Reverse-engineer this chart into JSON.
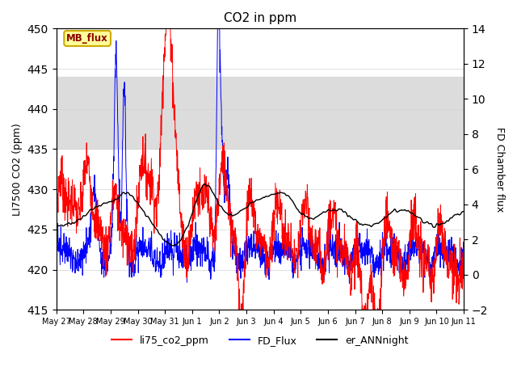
{
  "title": "CO2 in ppm",
  "ylabel_left": "LI7500 CO2 (ppm)",
  "ylabel_right": "FD Chamber flux",
  "ylim_left": [
    415,
    450
  ],
  "ylim_right": [
    -2,
    14
  ],
  "yticks_left": [
    415,
    420,
    425,
    430,
    435,
    440,
    445,
    450
  ],
  "yticks_right": [
    -2,
    0,
    2,
    4,
    6,
    8,
    10,
    12,
    14
  ],
  "xticklabels": [
    "May 27",
    "May 28",
    "May 29",
    "May 30",
    "May 31",
    "Jun 1",
    "Jun 2",
    "Jun 3",
    "Jun 4",
    "Jun 5",
    "Jun 6",
    "Jun 7",
    "Jun 8",
    "Jun 9",
    "Jun 10",
    "Jun 11"
  ],
  "legend_labels": [
    "li75_co2_ppm",
    "FD_Flux",
    "er_ANNnight"
  ],
  "line_colors": [
    "red",
    "blue",
    "black"
  ],
  "annotation_text": "MB_flux",
  "annotation_color": "#8B0000",
  "annotation_bg": "#FFFF99",
  "annotation_border": "#CCAA00",
  "band_ylim": [
    435,
    444
  ],
  "band_color": "#DCDCDC",
  "n_points": 1600,
  "seed": 7,
  "fig_width": 6.4,
  "fig_height": 4.8,
  "dpi": 100
}
